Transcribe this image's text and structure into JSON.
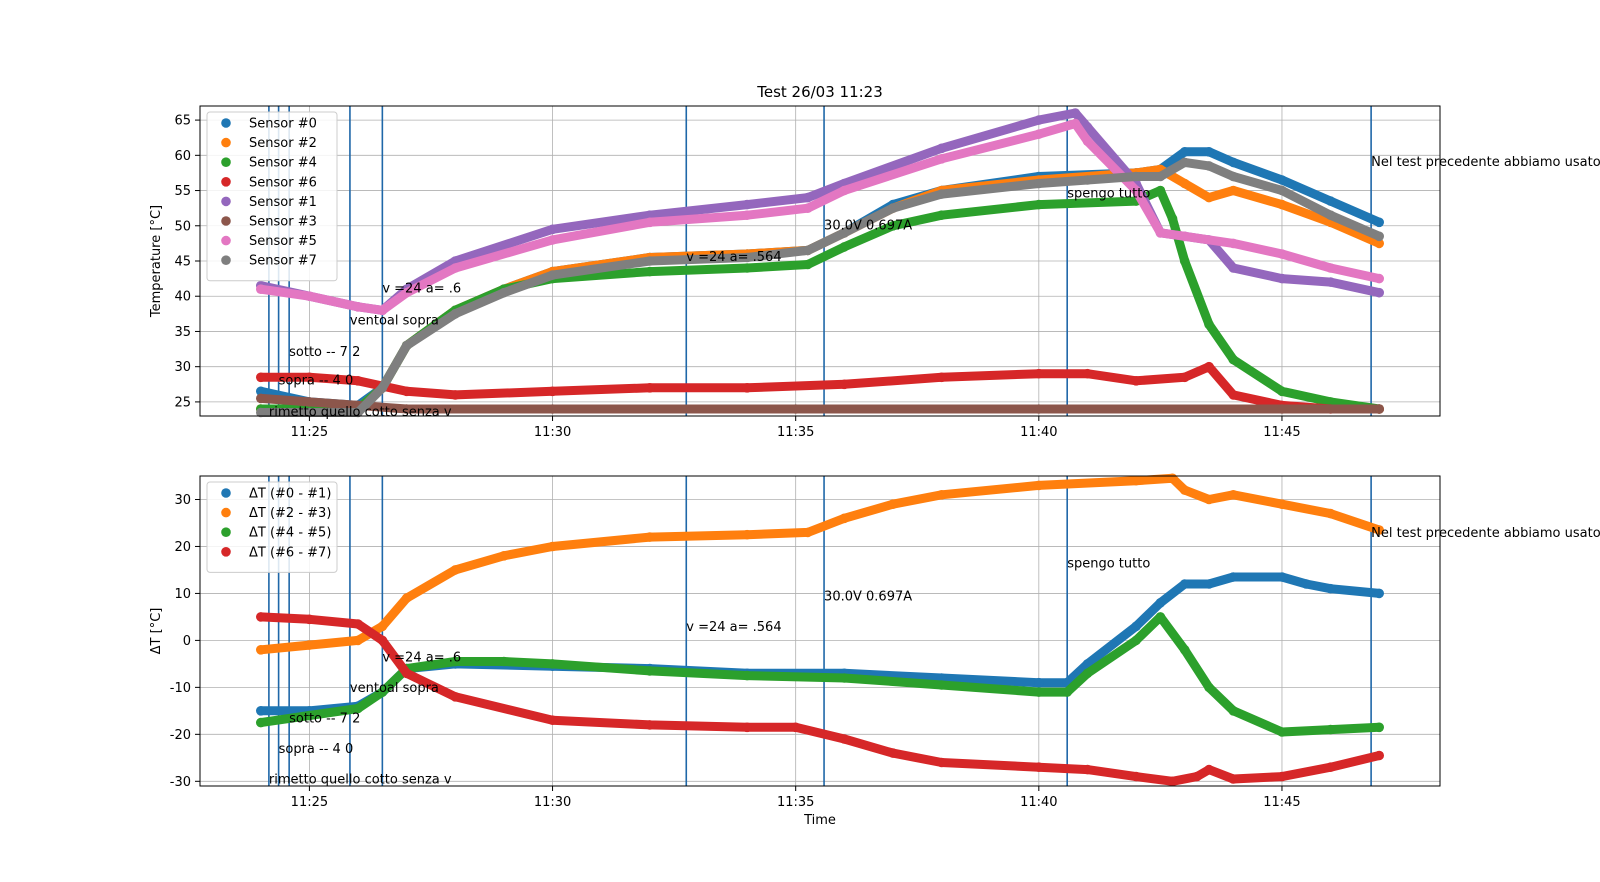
{
  "chart_data": [
    {
      "type": "scatter",
      "title": "Test 26/03 11:23",
      "xlabel": "",
      "ylabel": "Temperature [°C]",
      "xlim": [
        "11:22:45",
        "11:48:15"
      ],
      "ylim": [
        23,
        67
      ],
      "grid": true,
      "legend_placement": "upper-left",
      "xticks": [
        "11:25",
        "11:30",
        "11:35",
        "11:40",
        "11:45"
      ],
      "yticks": [
        25,
        30,
        35,
        40,
        45,
        50,
        55,
        60,
        65
      ],
      "series": [
        {
          "name": "Sensor #0",
          "color": "#1f77b4",
          "x": [
            "11:24:00",
            "11:25:00",
            "11:26:00",
            "11:26:30",
            "11:27:00",
            "11:28:00",
            "11:29:00",
            "11:30:00",
            "11:32:00",
            "11:34:00",
            "11:35:15",
            "11:36:00",
            "11:37:00",
            "11:38:00",
            "11:40:00",
            "11:42:00",
            "11:42:30",
            "11:43:00",
            "11:43:30",
            "11:44:00",
            "11:45:00",
            "11:46:00",
            "11:47:00"
          ],
          "y": [
            26.5,
            25,
            24.5,
            27,
            33,
            38,
            41,
            43.5,
            45.5,
            46,
            46.5,
            49,
            53,
            55,
            57,
            57.5,
            58,
            60.5,
            60.5,
            59,
            56.5,
            53.5,
            50.5
          ]
        },
        {
          "name": "Sensor #2",
          "color": "#ff7f0e",
          "x": [
            "11:24:00",
            "11:25:00",
            "11:26:00",
            "11:26:30",
            "11:27:00",
            "11:28:00",
            "11:29:00",
            "11:30:00",
            "11:32:00",
            "11:34:00",
            "11:35:15",
            "11:36:00",
            "11:37:00",
            "11:38:00",
            "11:40:00",
            "11:42:00",
            "11:42:30",
            "11:43:00",
            "11:43:30",
            "11:44:00",
            "11:45:00",
            "11:46:00",
            "11:47:00"
          ],
          "y": [
            24,
            24,
            24,
            27,
            33,
            38,
            41,
            43.5,
            45.5,
            46,
            46.5,
            49,
            52.5,
            55,
            56.5,
            57.5,
            58,
            56,
            54,
            55,
            53,
            50.5,
            47.5
          ]
        },
        {
          "name": "Sensor #4",
          "color": "#2ca02c",
          "x": [
            "11:24:00",
            "11:25:00",
            "11:26:00",
            "11:26:30",
            "11:27:00",
            "11:28:00",
            "11:29:00",
            "11:30:00",
            "11:32:00",
            "11:34:00",
            "11:35:15",
            "11:36:00",
            "11:37:00",
            "11:38:00",
            "11:40:00",
            "11:42:00",
            "11:42:30",
            "11:42:45",
            "11:43:00",
            "11:43:30",
            "11:44:00",
            "11:45:00",
            "11:46:00",
            "11:47:00"
          ],
          "y": [
            24,
            24,
            24,
            27,
            33,
            38,
            41,
            42.5,
            43.5,
            44,
            44.5,
            47,
            50,
            51.5,
            53,
            53.5,
            55,
            51,
            45,
            36,
            31,
            26.5,
            25,
            24
          ]
        },
        {
          "name": "Sensor #6",
          "color": "#d62728",
          "x": [
            "11:24:00",
            "11:25:00",
            "11:26:00",
            "11:27:00",
            "11:28:00",
            "11:30:00",
            "11:32:00",
            "11:34:00",
            "11:36:00",
            "11:38:00",
            "11:40:00",
            "11:41:00",
            "11:42:00",
            "11:43:00",
            "11:43:30",
            "11:44:00",
            "11:45:00",
            "11:46:00",
            "11:47:00"
          ],
          "y": [
            28.5,
            28.5,
            28,
            26.5,
            26,
            26.5,
            27,
            27,
            27.5,
            28.5,
            29,
            29,
            28,
            28.5,
            30,
            26,
            24.5,
            24,
            24
          ]
        },
        {
          "name": "Sensor #1",
          "color": "#9467bd",
          "x": [
            "11:24:00",
            "11:25:00",
            "11:26:00",
            "11:26:30",
            "11:27:00",
            "11:28:00",
            "11:30:00",
            "11:32:00",
            "11:34:00",
            "11:35:15",
            "11:36:00",
            "11:38:00",
            "11:40:00",
            "11:40:45",
            "11:41:00",
            "11:42:00",
            "11:42:30",
            "11:43:00",
            "11:43:30",
            "11:44:00",
            "11:45:00",
            "11:46:00",
            "11:47:00"
          ],
          "y": [
            41.5,
            40,
            38.5,
            38,
            41,
            45,
            49.5,
            51.5,
            53,
            54,
            56,
            61,
            65,
            66,
            64,
            56,
            49,
            48.5,
            48,
            44,
            42.5,
            42,
            40.5
          ]
        },
        {
          "name": "Sensor #3",
          "color": "#8c564b",
          "x": [
            "11:24:00",
            "11:25:00",
            "11:26:00",
            "11:27:00",
            "11:30:00",
            "11:35:00",
            "11:40:00",
            "11:45:00",
            "11:47:00"
          ],
          "y": [
            25.5,
            25,
            24.5,
            24,
            24,
            24,
            24,
            24,
            24
          ]
        },
        {
          "name": "Sensor #5",
          "color": "#e377c2",
          "x": [
            "11:24:00",
            "11:25:00",
            "11:26:00",
            "11:26:30",
            "11:27:00",
            "11:28:00",
            "11:30:00",
            "11:32:00",
            "11:34:00",
            "11:35:15",
            "11:36:00",
            "11:38:00",
            "11:40:00",
            "11:40:45",
            "11:41:00",
            "11:42:00",
            "11:42:30",
            "11:43:00",
            "11:44:00",
            "11:45:00",
            "11:46:00",
            "11:47:00"
          ],
          "y": [
            41,
            40,
            38.5,
            38,
            40.5,
            44,
            48,
            50.5,
            51.5,
            52.5,
            55,
            59.5,
            63,
            64.5,
            62,
            55,
            49,
            48.5,
            47.5,
            46,
            44,
            42.5
          ]
        },
        {
          "name": "Sensor #7",
          "color": "#7f7f7f",
          "x": [
            "11:24:00",
            "11:25:00",
            "11:26:00",
            "11:26:30",
            "11:27:00",
            "11:28:00",
            "11:29:00",
            "11:30:00",
            "11:32:00",
            "11:34:00",
            "11:35:15",
            "11:36:00",
            "11:37:00",
            "11:38:00",
            "11:40:00",
            "11:41:00",
            "11:42:00",
            "11:42:30",
            "11:43:00",
            "11:43:30",
            "11:44:00",
            "11:45:00",
            "11:46:00",
            "11:47:00"
          ],
          "y": [
            23.5,
            23.5,
            23.5,
            27,
            33,
            37.5,
            40.5,
            43,
            45,
            45.5,
            46.5,
            49,
            52.5,
            54.5,
            56,
            56.5,
            57,
            57,
            59,
            58.5,
            57,
            55,
            51.5,
            48.5
          ]
        }
      ],
      "vlines": [
        "11:24:10",
        "11:24:22",
        "11:24:35",
        "11:25:50",
        "11:26:30",
        "11:32:45",
        "11:35:35",
        "11:40:35",
        "11:46:50"
      ],
      "annotations": [
        {
          "text": "Nel test precedente abbiamo usato",
          "x": "11:46:50",
          "y": 58.5
        },
        {
          "text": "spengo tutto",
          "x": "11:40:35",
          "y": 54
        },
        {
          "text": "30.0V 0.697A",
          "x": "11:35:35",
          "y": 49.5
        },
        {
          "text": "v =24 a= .564",
          "x": "11:32:45",
          "y": 45
        },
        {
          "text": "v =24 a= .6",
          "x": "11:26:30",
          "y": 40.5
        },
        {
          "text": "ventoal sopra",
          "x": "11:25:50",
          "y": 36
        },
        {
          "text": "sotto  -- 7 2",
          "x": "11:24:35",
          "y": 31.5
        },
        {
          "text": "sopra  -- 4 0",
          "x": "11:24:22",
          "y": 27.5
        },
        {
          "text": "rimetto quello cotto senza v",
          "x": "11:24:10",
          "y": 23
        }
      ]
    },
    {
      "type": "scatter",
      "title": "",
      "xlabel": "Time",
      "ylabel": "ΔT [°C]",
      "xlim": [
        "11:22:45",
        "11:48:15"
      ],
      "ylim": [
        -31,
        35
      ],
      "grid": true,
      "legend_placement": "upper-left",
      "xticks": [
        "11:25",
        "11:30",
        "11:35",
        "11:40",
        "11:45"
      ],
      "yticks": [
        -30,
        -20,
        -10,
        0,
        10,
        20,
        30
      ],
      "series": [
        {
          "name": "ΔT (#0 - #1)",
          "color": "#1f77b4",
          "x": [
            "11:24:00",
            "11:25:00",
            "11:26:00",
            "11:26:30",
            "11:27:00",
            "11:28:00",
            "11:30:00",
            "11:32:00",
            "11:34:00",
            "11:36:00",
            "11:38:00",
            "11:40:00",
            "11:40:35",
            "11:41:00",
            "11:42:00",
            "11:42:30",
            "11:43:00",
            "11:43:30",
            "11:44:00",
            "11:45:00",
            "11:45:30",
            "11:46:00",
            "11:47:00"
          ],
          "y": [
            -15,
            -15,
            -14,
            -11,
            -6,
            -5,
            -5.5,
            -6,
            -7,
            -7,
            -8,
            -9,
            -9,
            -5,
            3,
            8,
            12,
            12,
            13.5,
            13.5,
            12,
            11,
            10
          ]
        },
        {
          "name": "ΔT (#2 - #3)",
          "color": "#ff7f0e",
          "x": [
            "11:24:00",
            "11:25:00",
            "11:26:00",
            "11:26:30",
            "11:27:00",
            "11:28:00",
            "11:29:00",
            "11:30:00",
            "11:32:00",
            "11:34:00",
            "11:35:15",
            "11:36:00",
            "11:37:00",
            "11:38:00",
            "11:40:00",
            "11:42:00",
            "11:42:45",
            "11:43:00",
            "11:43:30",
            "11:44:00",
            "11:45:00",
            "11:46:00",
            "11:47:00"
          ],
          "y": [
            -2,
            -1,
            0,
            3,
            9,
            15,
            18,
            20,
            22,
            22.5,
            23,
            26,
            29,
            31,
            33,
            34,
            34.5,
            32,
            30,
            31,
            29,
            27,
            23.5
          ]
        },
        {
          "name": "ΔT (#4 - #5)",
          "color": "#2ca02c",
          "x": [
            "11:24:00",
            "11:25:00",
            "11:26:00",
            "11:26:30",
            "11:27:00",
            "11:28:00",
            "11:29:00",
            "11:30:00",
            "11:32:00",
            "11:34:00",
            "11:36:00",
            "11:38:00",
            "11:40:00",
            "11:40:35",
            "11:41:00",
            "11:42:00",
            "11:42:30",
            "11:43:00",
            "11:43:30",
            "11:44:00",
            "11:45:00",
            "11:46:00",
            "11:47:00"
          ],
          "y": [
            -17.5,
            -16,
            -14.5,
            -11,
            -6,
            -4.5,
            -4.5,
            -5,
            -6.5,
            -7.5,
            -8,
            -9.5,
            -11,
            -11,
            -7,
            0,
            5,
            -2,
            -10,
            -15,
            -19.5,
            -19,
            -18.5
          ]
        },
        {
          "name": "ΔT (#6 - #7)",
          "color": "#d62728",
          "x": [
            "11:24:00",
            "11:25:00",
            "11:26:00",
            "11:26:30",
            "11:27:00",
            "11:28:00",
            "11:30:00",
            "11:32:00",
            "11:34:00",
            "11:35:00",
            "11:36:00",
            "11:37:00",
            "11:38:00",
            "11:40:00",
            "11:41:00",
            "11:42:00",
            "11:42:45",
            "11:43:15",
            "11:43:30",
            "11:44:00",
            "11:45:00",
            "11:46:00",
            "11:47:00"
          ],
          "y": [
            5,
            4.5,
            3.5,
            0,
            -7,
            -12,
            -17,
            -18,
            -18.5,
            -18.5,
            -21,
            -24,
            -26,
            -27,
            -27.5,
            -29,
            -30,
            -29,
            -27.5,
            -29.5,
            -29,
            -27,
            -24.5
          ]
        }
      ],
      "vlines": [
        "11:24:10",
        "11:24:22",
        "11:24:35",
        "11:25:50",
        "11:26:30",
        "11:32:45",
        "11:35:35",
        "11:40:35",
        "11:46:50"
      ],
      "annotations": [
        {
          "text": "Nel test precedente abbiamo usato",
          "x": "11:46:50",
          "y": 22
        },
        {
          "text": "spengo tutto",
          "x": "11:40:35",
          "y": 15.5
        },
        {
          "text": "30.0V 0.697A",
          "x": "11:35:35",
          "y": 8.5
        },
        {
          "text": "v =24 a= .564",
          "x": "11:32:45",
          "y": 2
        },
        {
          "text": "v =24 a= .6",
          "x": "11:26:30",
          "y": -4.5
        },
        {
          "text": "ventoal sopra",
          "x": "11:25:50",
          "y": -11
        },
        {
          "text": "sotto  -- 7 2",
          "x": "11:24:35",
          "y": -17.5
        },
        {
          "text": "sopra  -- 4 0",
          "x": "11:24:22",
          "y": -24
        },
        {
          "text": "rimetto quello cotto senza v",
          "x": "11:24:10",
          "y": -30.5
        }
      ]
    }
  ]
}
